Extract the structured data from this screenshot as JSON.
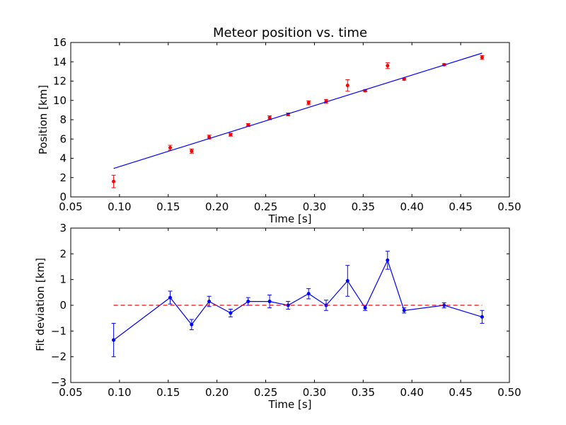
{
  "chart_data": [
    {
      "type": "scatter",
      "title": "Meteor position vs. time",
      "xlabel": "Time [s]",
      "ylabel": "Position [km]",
      "xlim": [
        0.05,
        0.5
      ],
      "ylim": [
        0,
        16
      ],
      "xticks": [
        "0.05",
        "0.10",
        "0.15",
        "0.20",
        "0.25",
        "0.30",
        "0.35",
        "0.40",
        "0.45",
        "0.50"
      ],
      "yticks": [
        "0",
        "2",
        "4",
        "6",
        "8",
        "10",
        "12",
        "14",
        "16"
      ],
      "grid": false,
      "series": [
        {
          "kind": "errorbar-points",
          "color": "#ff0000",
          "x": [
            0.094,
            0.152,
            0.174,
            0.192,
            0.214,
            0.232,
            0.254,
            0.273,
            0.294,
            0.312,
            0.334,
            0.352,
            0.375,
            0.392,
            0.433,
            0.472
          ],
          "y": [
            1.6,
            5.1,
            4.75,
            6.2,
            6.45,
            7.45,
            8.2,
            8.55,
            9.75,
            9.9,
            11.55,
            11.0,
            13.6,
            12.2,
            13.7,
            14.45
          ],
          "yerr": [
            0.65,
            0.25,
            0.22,
            0.2,
            0.15,
            0.15,
            0.2,
            0.15,
            0.2,
            0.2,
            0.6,
            0.1,
            0.3,
            0.1,
            0.1,
            0.2
          ]
        },
        {
          "kind": "line",
          "color": "#0000ff",
          "x": [
            0.094,
            0.472
          ],
          "y": [
            2.95,
            14.9
          ]
        }
      ]
    },
    {
      "type": "line",
      "title": "",
      "xlabel": "Time [s]",
      "ylabel": "Fit deviation [km]",
      "xlim": [
        0.05,
        0.5
      ],
      "ylim": [
        -3,
        3
      ],
      "xticks": [
        "0.05",
        "0.10",
        "0.15",
        "0.20",
        "0.25",
        "0.30",
        "0.35",
        "0.40",
        "0.45",
        "0.50"
      ],
      "yticks": [
        "−3",
        "−2",
        "−1",
        "0",
        "1",
        "2",
        "3"
      ],
      "grid": false,
      "series": [
        {
          "kind": "errorbar-line",
          "color": "#0000ff",
          "x": [
            0.094,
            0.152,
            0.174,
            0.192,
            0.214,
            0.232,
            0.254,
            0.273,
            0.294,
            0.312,
            0.334,
            0.352,
            0.375,
            0.392,
            0.433,
            0.472
          ],
          "y": [
            -1.35,
            0.3,
            -0.75,
            0.15,
            -0.3,
            0.15,
            0.15,
            0.0,
            0.45,
            0.0,
            0.95,
            -0.1,
            1.75,
            -0.2,
            0.0,
            -0.45
          ],
          "yerr": [
            0.65,
            0.25,
            0.2,
            0.2,
            0.15,
            0.15,
            0.25,
            0.15,
            0.2,
            0.2,
            0.6,
            0.1,
            0.35,
            0.1,
            0.1,
            0.25
          ]
        },
        {
          "kind": "dashed-line",
          "color": "#ff0000",
          "x": [
            0.094,
            0.472
          ],
          "y": [
            0,
            0
          ]
        }
      ]
    }
  ]
}
